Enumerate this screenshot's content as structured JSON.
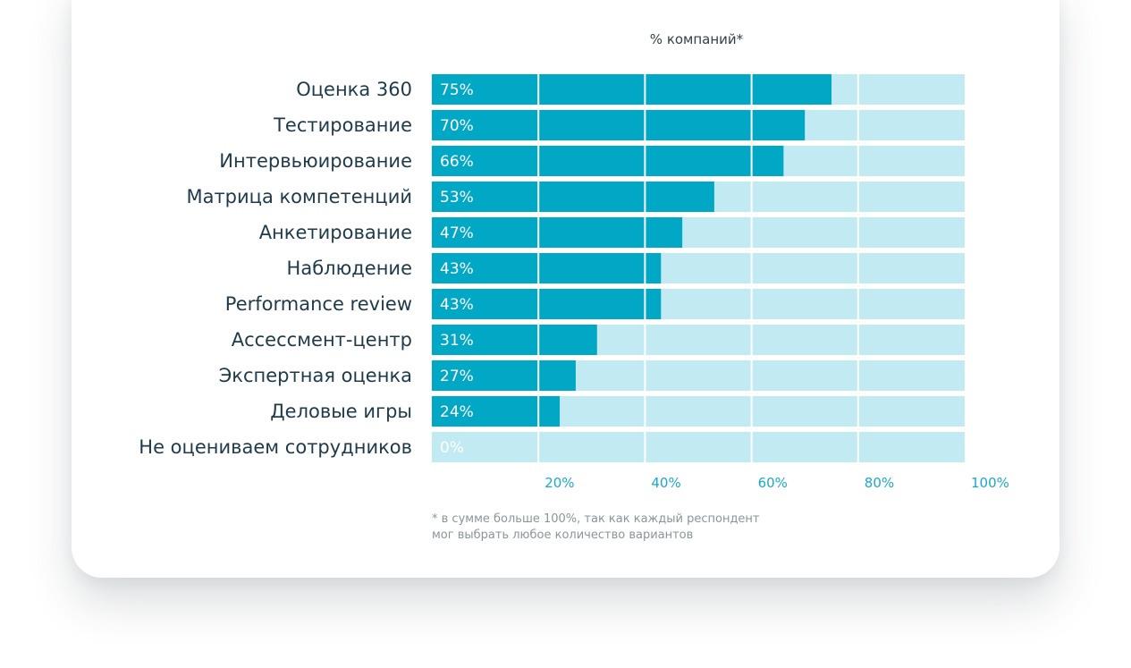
{
  "chart_data": {
    "type": "bar",
    "orientation": "horizontal",
    "title": "% компаний*",
    "categories": [
      "Оценка 360",
      "Тестирование",
      "Интервьюирование",
      "Матрица компетенций",
      "Анкетирование",
      "Наблюдение",
      "Performance review",
      "Ассессмент-центр",
      "Экспертная оценка",
      "Деловые игры",
      "Не оцениваем сотрудников"
    ],
    "values": [
      75,
      70,
      66,
      53,
      47,
      43,
      43,
      31,
      27,
      24,
      0
    ],
    "value_labels": [
      "75%",
      "70%",
      "66%",
      "53%",
      "47%",
      "43%",
      "43%",
      "31%",
      "27%",
      "24%",
      "0%"
    ],
    "xlim": [
      0,
      100
    ],
    "ticks": [
      20,
      40,
      60,
      80,
      100
    ],
    "tick_labels": [
      "20%",
      "40%",
      "60%",
      "80%",
      "100%"
    ],
    "grid": true,
    "footnote": [
      "* в сумме больше 100%, так как каждый респондент",
      "мог выбрать любое количество вариантов"
    ],
    "colors": {
      "bar": "#00a8c6",
      "track": "#c2eaf2",
      "value_text": "#ffffff",
      "zero_value_text": "#ffffff",
      "tick_text": "#1aa9c9",
      "category_text": "#1f3a4a"
    }
  }
}
